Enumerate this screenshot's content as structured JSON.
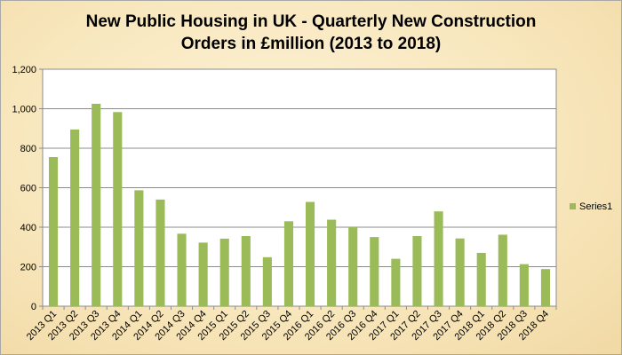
{
  "chart_data": {
    "type": "bar",
    "title_lines": [
      "New Public Housing in UK - Quarterly New Construction",
      "Orders in £million (2013 to 2018)"
    ],
    "categories": [
      "2013 Q1",
      "2013 Q2",
      "2013 Q3",
      "2013 Q4",
      "2014 Q1",
      "2014 Q2",
      "2014 Q3",
      "2014 Q4",
      "2015 Q1",
      "2015 Q2",
      "2015 Q3",
      "2015 Q4",
      "2016 Q1",
      "2016 Q2",
      "2016 Q3",
      "2016 Q4",
      "2017 Q1",
      "2017 Q2",
      "2017 Q3",
      "2017 Q4",
      "2018 Q1",
      "2018 Q2",
      "2018 Q3",
      "2018 Q4"
    ],
    "series": [
      {
        "name": "Series1",
        "color": "#9bbb59",
        "values": [
          755,
          895,
          1025,
          983,
          587,
          540,
          367,
          322,
          342,
          355,
          248,
          430,
          528,
          438,
          400,
          350,
          240,
          355,
          480,
          343,
          270,
          362,
          213,
          188
        ]
      }
    ],
    "yticks": [
      "0",
      "200",
      "400",
      "600",
      "800",
      "1,000",
      "1,200"
    ],
    "ytick_values": [
      0,
      200,
      400,
      600,
      800,
      1000,
      1200
    ],
    "ylim": [
      0,
      1200
    ],
    "grid": true,
    "legend_position": "right"
  }
}
